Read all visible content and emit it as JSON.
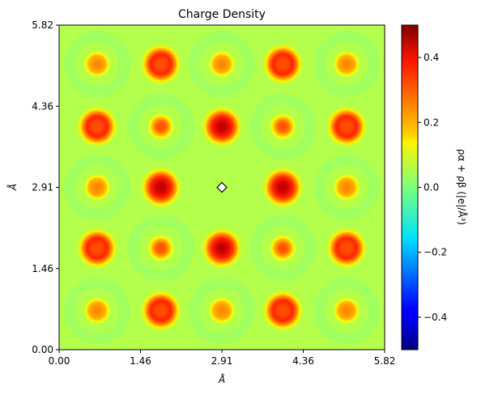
{
  "chart_data": {
    "type": "heatmap",
    "title": "Charge Density",
    "xlabel": "Å",
    "ylabel": "Å",
    "xlim": [
      0.0,
      5.82
    ],
    "ylim": [
      0.0,
      5.82
    ],
    "xticks": [
      "0.00",
      "1.46",
      "2.91",
      "4.36",
      "5.82"
    ],
    "yticks": [
      "0.00",
      "1.46",
      "2.91",
      "4.36",
      "5.82"
    ],
    "xtick_values": [
      0.0,
      1.455,
      2.91,
      4.365,
      5.82
    ],
    "ytick_values": [
      0.0,
      1.455,
      2.91,
      4.365,
      5.82
    ],
    "colormap": "jet",
    "background_value": 0.05,
    "colorbar": {
      "label": "ρα + ρβ (|e|/Å³)",
      "range": [
        -0.5,
        0.5
      ],
      "ticks": [
        "−0.4",
        "−0.2",
        "0.0",
        "0.2",
        "0.4"
      ],
      "tick_values": [
        -0.4,
        -0.2,
        0.0,
        0.2,
        0.4
      ]
    },
    "marker": {
      "x": 2.91,
      "y": 2.91,
      "shape": "diamond",
      "color": "#ffffff"
    },
    "blobs": [
      {
        "x": 0.68,
        "y": 5.12,
        "peak": 0.25,
        "size": "small"
      },
      {
        "x": 1.82,
        "y": 5.12,
        "peak": 0.3,
        "size": "large"
      },
      {
        "x": 2.91,
        "y": 5.12,
        "peak": 0.25,
        "size": "small"
      },
      {
        "x": 4.0,
        "y": 5.12,
        "peak": 0.3,
        "size": "large"
      },
      {
        "x": 5.14,
        "y": 5.12,
        "peak": 0.25,
        "size": "small"
      },
      {
        "x": 0.68,
        "y": 4.0,
        "peak": 0.3,
        "size": "large"
      },
      {
        "x": 1.82,
        "y": 4.0,
        "peak": 0.3,
        "size": "small"
      },
      {
        "x": 2.91,
        "y": 4.0,
        "peak": 0.45,
        "size": "large"
      },
      {
        "x": 4.0,
        "y": 4.0,
        "peak": 0.3,
        "size": "small"
      },
      {
        "x": 5.14,
        "y": 4.0,
        "peak": 0.3,
        "size": "large"
      },
      {
        "x": 0.68,
        "y": 2.91,
        "peak": 0.25,
        "size": "small"
      },
      {
        "x": 1.82,
        "y": 2.91,
        "peak": 0.45,
        "size": "large"
      },
      {
        "x": 4.0,
        "y": 2.91,
        "peak": 0.45,
        "size": "large"
      },
      {
        "x": 5.14,
        "y": 2.91,
        "peak": 0.25,
        "size": "small"
      },
      {
        "x": 0.68,
        "y": 1.82,
        "peak": 0.3,
        "size": "large"
      },
      {
        "x": 1.82,
        "y": 1.82,
        "peak": 0.3,
        "size": "small"
      },
      {
        "x": 2.91,
        "y": 1.82,
        "peak": 0.45,
        "size": "large"
      },
      {
        "x": 4.0,
        "y": 1.82,
        "peak": 0.3,
        "size": "small"
      },
      {
        "x": 5.14,
        "y": 1.82,
        "peak": 0.3,
        "size": "large"
      },
      {
        "x": 0.68,
        "y": 0.7,
        "peak": 0.25,
        "size": "small"
      },
      {
        "x": 1.82,
        "y": 0.7,
        "peak": 0.3,
        "size": "large"
      },
      {
        "x": 2.91,
        "y": 0.7,
        "peak": 0.25,
        "size": "small"
      },
      {
        "x": 4.0,
        "y": 0.7,
        "peak": 0.3,
        "size": "large"
      },
      {
        "x": 5.14,
        "y": 0.7,
        "peak": 0.25,
        "size": "small"
      }
    ]
  }
}
